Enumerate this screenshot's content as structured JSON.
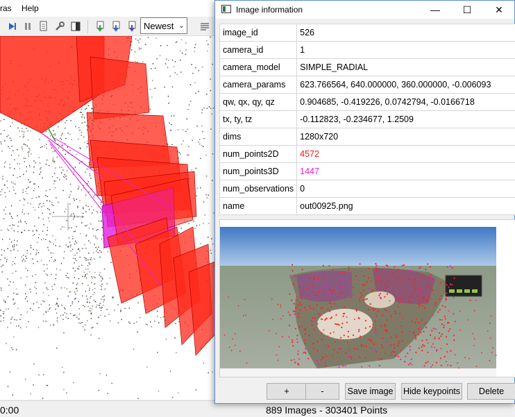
{
  "main_window": {
    "menu": {
      "partial_item": "ras",
      "help": "Help"
    },
    "toolbar": {
      "newest_select": "Newest",
      "icons": [
        "play-icon",
        "pause-icon",
        "document-icon",
        "wrench-icon",
        "contrast-icon",
        "download-green-icon",
        "download-blue-icon",
        "download-purple-icon",
        "align-icon"
      ]
    },
    "status": {
      "time": "0:00",
      "counts": "889 Images - 303401 Points"
    }
  },
  "dialog": {
    "title": "Image information",
    "controls": {
      "minimize": "—",
      "maximize": "☐",
      "close": "✕"
    },
    "rows": [
      {
        "key": "image_id",
        "value": "526"
      },
      {
        "key": "camera_id",
        "value": "1"
      },
      {
        "key": "camera_model",
        "value": "SIMPLE_RADIAL"
      },
      {
        "key": "camera_params",
        "value": "623.766564, 640.000000, 360.000000, -0.006093"
      },
      {
        "key": "qw, qx, qy, qz",
        "value": "0.904685, -0.419226, 0.0742794, -0.0166718"
      },
      {
        "key": "tx, ty, tz",
        "value": "-0.112823, -0.234677, 1.2509"
      },
      {
        "key": "dims",
        "value": "1280x720"
      },
      {
        "key": "num_points2D",
        "value": "4572"
      },
      {
        "key": "num_points3D",
        "value": "1447"
      },
      {
        "key": "num_observations",
        "value": "0"
      },
      {
        "key": "name",
        "value": "out00925.png"
      }
    ],
    "buttons": {
      "zoom_in": "+",
      "zoom_out": "-",
      "save_image": "Save image",
      "hide_keypoints": "Hide keypoints",
      "delete": "Delete"
    }
  },
  "colors": {
    "camera_red": "#ff2a1a",
    "camera_selected": "#e21ee0",
    "value_red": "#e31a1c",
    "value_magenta": "#e21ee0",
    "sky": "#4d83c8"
  }
}
